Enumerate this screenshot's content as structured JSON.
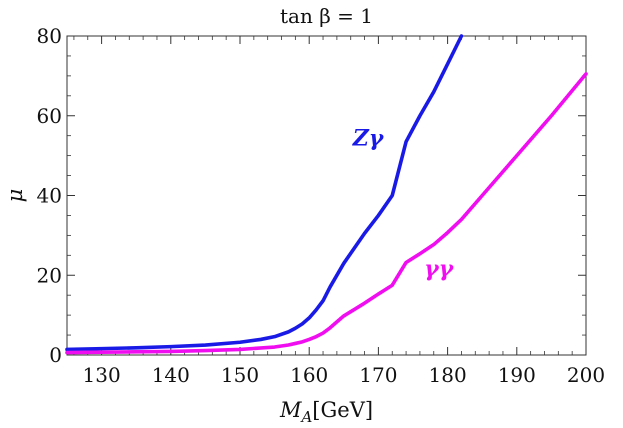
{
  "chart_data": {
    "type": "line",
    "title": "tan β = 1",
    "xlabel": "M_A[GeV]",
    "ylabel": "μ",
    "xlim": [
      125,
      200
    ],
    "ylim": [
      0,
      80
    ],
    "xticks": [
      130,
      140,
      150,
      160,
      170,
      180,
      190,
      200
    ],
    "yticks": [
      0,
      20,
      40,
      60,
      80
    ],
    "grid": false,
    "series": [
      {
        "name": "Zγ",
        "color": "#1a1ae6",
        "x": [
          125,
          130,
          135,
          140,
          145,
          150,
          153,
          155,
          157,
          158,
          159,
          160,
          161,
          162,
          163,
          165,
          168,
          170,
          172,
          174,
          176,
          178,
          180,
          182
        ],
        "y": [
          1.4,
          1.6,
          1.8,
          2.1,
          2.5,
          3.2,
          3.9,
          4.6,
          5.8,
          6.7,
          7.8,
          9.3,
          11.3,
          13.6,
          17.0,
          23.0,
          30.5,
          35.0,
          40.0,
          53.5,
          60.0,
          66.0,
          73.0,
          80.0
        ]
      },
      {
        "name": "γγ",
        "color": "#f00ef0",
        "x": [
          125,
          130,
          135,
          140,
          145,
          150,
          155,
          157,
          158,
          159,
          160,
          161,
          162,
          163,
          165,
          168,
          170,
          172,
          174,
          176,
          178,
          180,
          182,
          185,
          190,
          195,
          200
        ],
        "y": [
          0.6,
          0.7,
          0.8,
          0.9,
          1.1,
          1.4,
          2.0,
          2.5,
          2.9,
          3.3,
          3.9,
          4.6,
          5.5,
          6.8,
          9.8,
          13.0,
          15.3,
          17.5,
          23.2,
          25.4,
          27.7,
          30.7,
          34.0,
          40.0,
          50.0,
          60.0,
          70.5
        ]
      }
    ],
    "annotations": [
      {
        "text": "Zγ",
        "x": 168.5,
        "y": 52.5,
        "series": 0
      },
      {
        "text": "γγ",
        "x": 178.7,
        "y": 19.8,
        "series": 1
      }
    ]
  }
}
